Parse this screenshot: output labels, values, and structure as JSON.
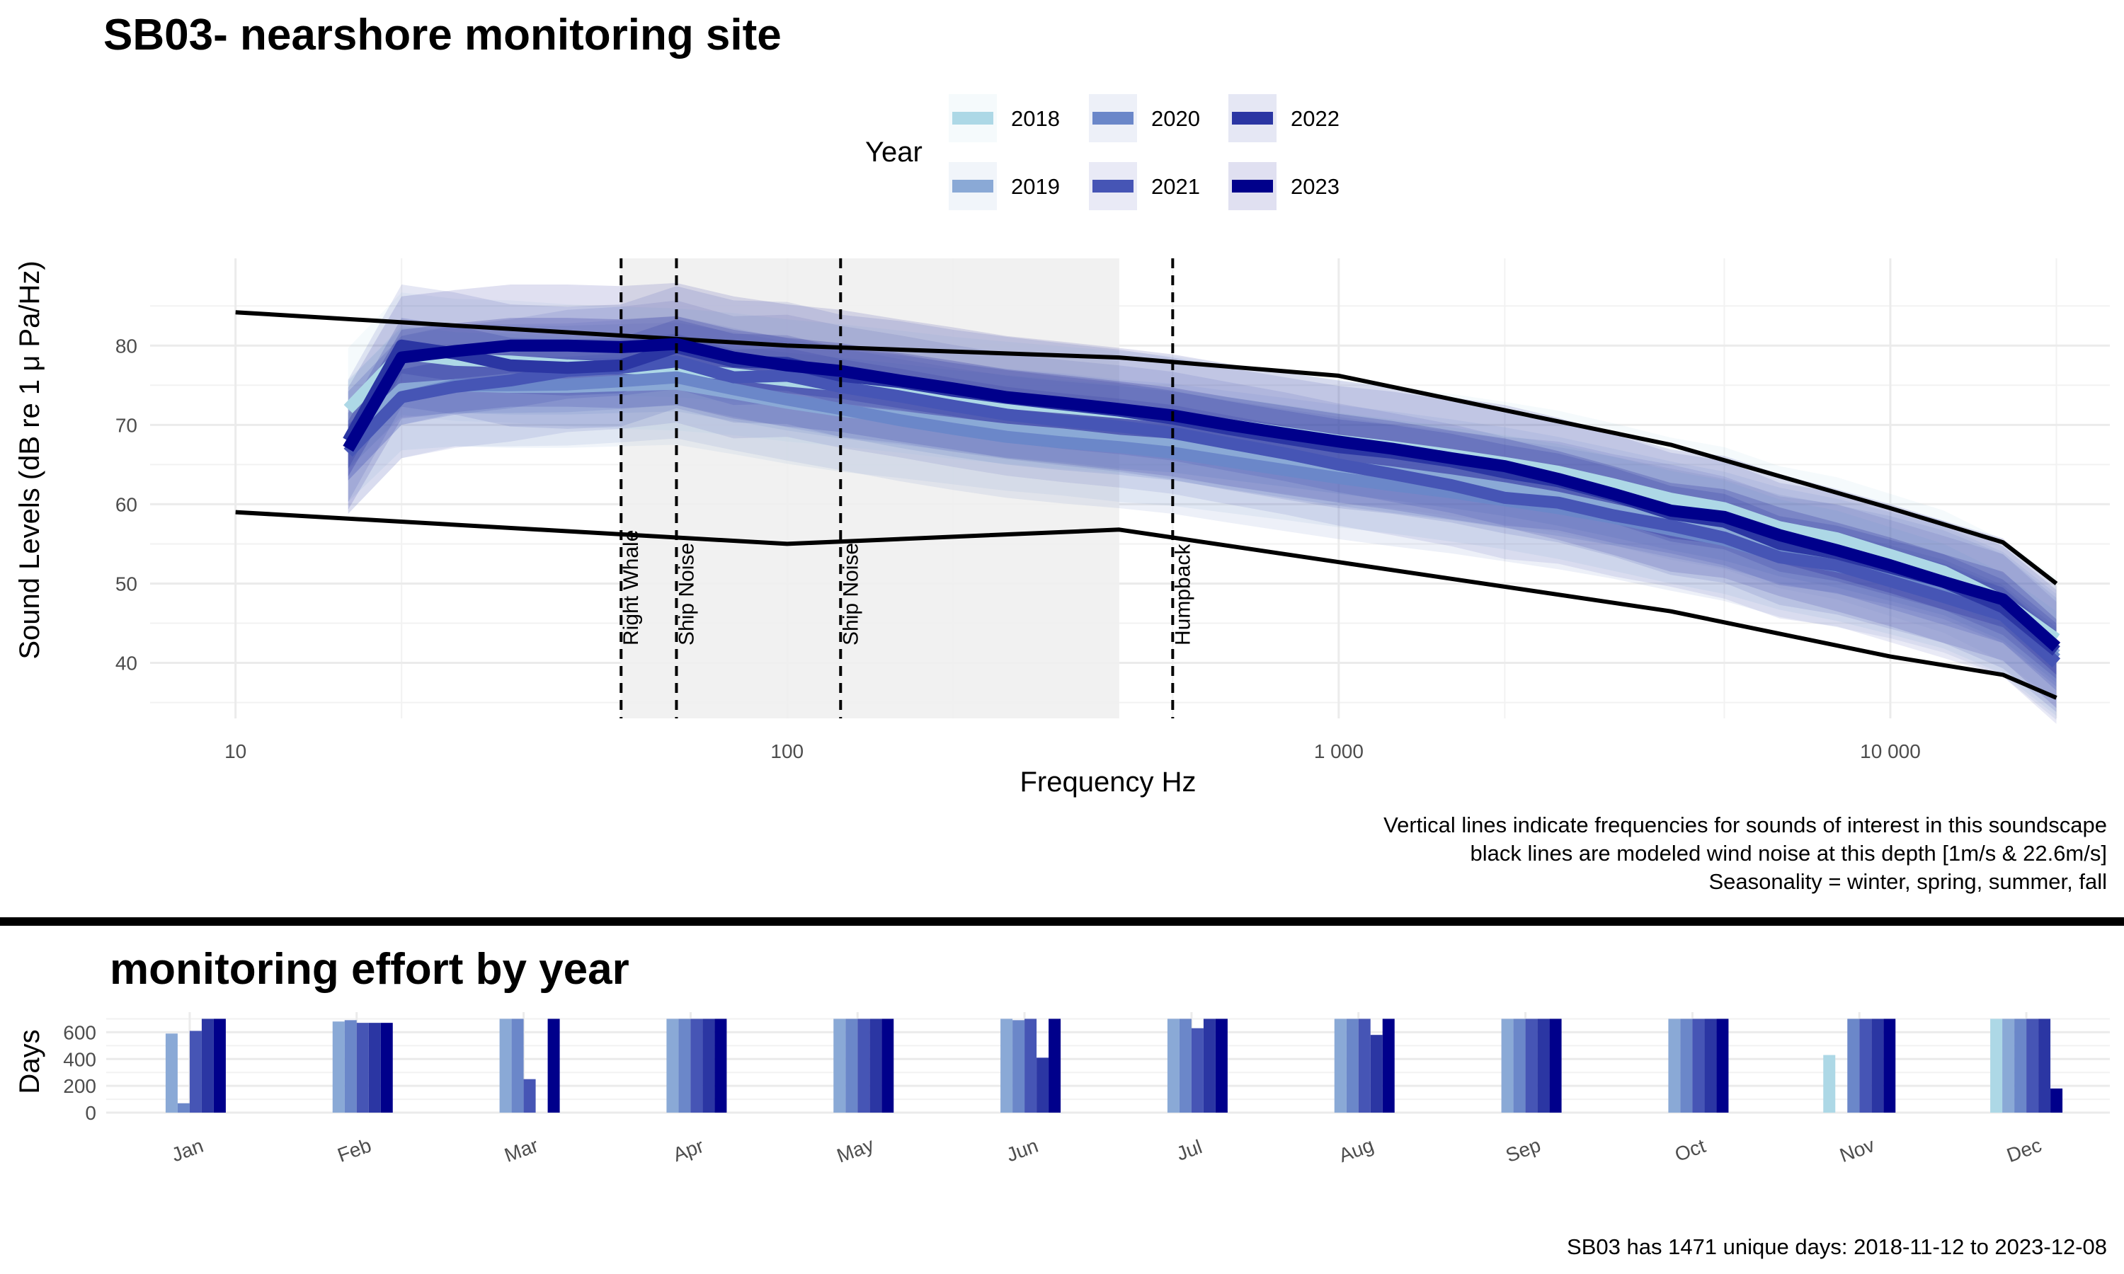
{
  "page": {
    "title": "SB03- nearshore monitoring site",
    "notes": [
      "Vertical lines indicate frequencies for sounds of interest in this soundscape",
      "black lines are modeled wind noise at this depth [1m/s & 22.6m/s]",
      "Seasonality = winter, spring, summer, fall"
    ],
    "effort_title": "monitoring effort by year",
    "footer": "SB03 has 1471 unique days: 2018-11-12 to 2023-12-08"
  },
  "chart_data": [
    {
      "type": "line",
      "title": "SB03- nearshore monitoring site",
      "xlabel": "Frequency Hz",
      "ylabel": "Sound Levels (dB re 1 μ Pa/Hz)",
      "x_scale": "log",
      "xlim": [
        7,
        25000
      ],
      "ylim": [
        33,
        91
      ],
      "x_ticks": [
        10,
        100,
        1000,
        10000
      ],
      "x_tick_labels": [
        "10",
        "100",
        "1 000",
        "10 000"
      ],
      "y_ticks": [
        40,
        50,
        60,
        70,
        80
      ],
      "grid": true,
      "legend": {
        "title": "Year",
        "position": "top",
        "entries": [
          "2018",
          "2019",
          "2020",
          "2021",
          "2022",
          "2023"
        ]
      },
      "shaded_band": {
        "x_from": 50,
        "x_to": 400,
        "color": "#f0f0f0"
      },
      "vertical_lines": [
        {
          "x": 50,
          "label": "Right Whale"
        },
        {
          "x": 63,
          "label": "Ship Noise"
        },
        {
          "x": 125,
          "label": "Ship Noise"
        },
        {
          "x": 500,
          "label": "Humpback"
        }
      ],
      "wind_noise": [
        {
          "name": "1m/s",
          "x": [
            10,
            100,
            400,
            1000,
            4000,
            10000,
            16000,
            20000
          ],
          "y": [
            59,
            55,
            56.8,
            52.7,
            46.5,
            40.8,
            38.5,
            35.6
          ]
        },
        {
          "name": "22.6m/s",
          "x": [
            10,
            100,
            400,
            1000,
            4000,
            10000,
            16000,
            20000
          ],
          "y": [
            84.2,
            80,
            78.5,
            76.2,
            67.5,
            59.5,
            55.2,
            50
          ]
        }
      ],
      "x": [
        16,
        20,
        25,
        31.5,
        40,
        50,
        63,
        80,
        100,
        125,
        160,
        200,
        250,
        315,
        400,
        500,
        630,
        800,
        1000,
        1250,
        1600,
        2000,
        2500,
        3150,
        4000,
        5000,
        6300,
        8000,
        10000,
        12500,
        16000,
        20000
      ],
      "series": [
        {
          "name": "2018",
          "color": "#add8e6",
          "band": 3.5,
          "values": [
            72,
            79,
            78.2,
            78,
            77.5,
            77.2,
            77,
            76.4,
            75.6,
            75,
            74.2,
            73.4,
            72.8,
            72.2,
            71.6,
            71,
            70,
            69,
            68,
            67.2,
            66.2,
            65.2,
            64.1,
            62.5,
            60.7,
            59.5,
            57.1,
            55.7,
            53.6,
            51.5,
            47.8,
            43
          ]
        },
        {
          "name": "2019",
          "color": "#8aa9d6",
          "band": 3.5,
          "values": [
            68,
            74.5,
            75,
            74.8,
            74.8,
            75,
            75.2,
            74,
            72.8,
            71.8,
            71,
            70.2,
            69.4,
            68.8,
            68,
            67.5,
            66.6,
            65.7,
            64.8,
            64,
            63,
            62,
            60.8,
            59.3,
            57.7,
            56.4,
            54.4,
            53,
            51.3,
            49.5,
            46.3,
            41
          ]
        },
        {
          "name": "2020",
          "color": "#6b87c9",
          "band": 3.5,
          "values": [
            66.5,
            73.5,
            75,
            75,
            75.1,
            75.5,
            76,
            74.5,
            73.2,
            72,
            70.6,
            69.5,
            68.5,
            67.8,
            67.2,
            66.5,
            65.4,
            64.3,
            63.3,
            62.4,
            61.5,
            60.5,
            59.5,
            58.3,
            56.8,
            55.5,
            53.5,
            52.2,
            50.8,
            49,
            46,
            40.5
          ]
        },
        {
          "name": "2021",
          "color": "#4655b5",
          "band": 3.5,
          "values": [
            66.5,
            73.5,
            74.8,
            75.6,
            76.8,
            77.2,
            78,
            76,
            76.2,
            74.8,
            73.6,
            72.4,
            71.3,
            70.5,
            69.8,
            69,
            67.7,
            66.4,
            65,
            63.8,
            62.4,
            60.8,
            60.2,
            58.6,
            57.3,
            55.8,
            53.3,
            52.3,
            50.3,
            48.3,
            46,
            40
          ]
        },
        {
          "name": "2022",
          "color": "#2b36a3",
          "band": 3.5,
          "values": [
            68,
            80,
            79,
            77.5,
            77.2,
            77.5,
            79.8,
            78,
            77.8,
            76.2,
            75.4,
            74.3,
            73.4,
            72.6,
            71.8,
            70.8,
            69.5,
            68.3,
            67.2,
            66.5,
            65.4,
            64,
            62.9,
            61.1,
            58.8,
            57.8,
            55,
            53.8,
            52,
            50.2,
            47,
            41.5
          ]
        },
        {
          "name": "2023",
          "color": "#00008b",
          "band": 3.5,
          "values": [
            67,
            78.5,
            79.3,
            80,
            80,
            79.8,
            80.2,
            78.5,
            77.5,
            76.8,
            75.6,
            74.6,
            73.5,
            72.8,
            72,
            71.2,
            70,
            68.9,
            67.9,
            67,
            65.8,
            64.8,
            63.2,
            61.3,
            59.2,
            58.4,
            56.1,
            54.2,
            52.3,
            50.2,
            48,
            42
          ]
        }
      ]
    },
    {
      "type": "bar",
      "title": "monitoring effort by year",
      "ylabel": "Days",
      "categories": [
        "Jan",
        "Feb",
        "Mar",
        "Apr",
        "May",
        "Jun",
        "Jul",
        "Aug",
        "Sep",
        "Oct",
        "Nov",
        "Dec"
      ],
      "y_ticks": [
        0,
        200,
        400,
        600
      ],
      "ylim": [
        0,
        750
      ],
      "grid": true,
      "series": [
        {
          "name": "2018",
          "color": "#add8e6",
          "values": [
            0,
            0,
            0,
            0,
            0,
            0,
            0,
            0,
            0,
            0,
            430,
            700
          ]
        },
        {
          "name": "2019",
          "color": "#8aa9d6",
          "values": [
            590,
            680,
            700,
            700,
            700,
            700,
            700,
            700,
            700,
            700,
            0,
            700
          ]
        },
        {
          "name": "2020",
          "color": "#6b87c9",
          "values": [
            70,
            690,
            700,
            700,
            700,
            690,
            700,
            700,
            700,
            700,
            700,
            700
          ]
        },
        {
          "name": "2021",
          "color": "#4655b5",
          "values": [
            610,
            670,
            250,
            700,
            700,
            700,
            630,
            700,
            700,
            700,
            700,
            700
          ]
        },
        {
          "name": "2022",
          "color": "#2b36a3",
          "values": [
            700,
            670,
            0,
            700,
            700,
            410,
            700,
            580,
            700,
            700,
            700,
            700
          ]
        },
        {
          "name": "2023",
          "color": "#00008b",
          "values": [
            700,
            670,
            700,
            700,
            700,
            700,
            700,
            700,
            700,
            700,
            700,
            180
          ]
        }
      ]
    }
  ]
}
